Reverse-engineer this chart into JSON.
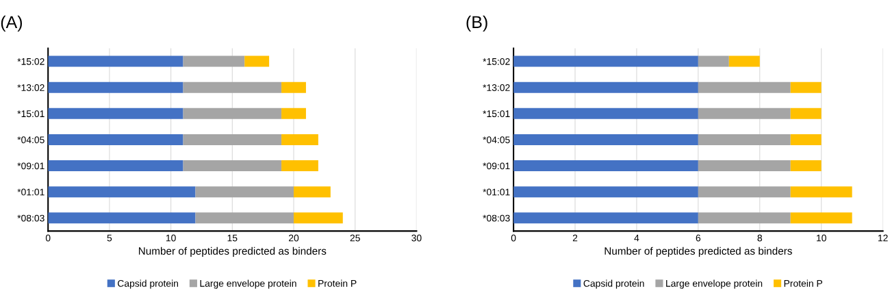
{
  "chart_data": [
    {
      "type": "bar",
      "title": "(A)",
      "orientation": "horizontal",
      "stacked": true,
      "xlabel": "Number of peptides predicted as binders",
      "categories": [
        "*15:02",
        "*13:02",
        "*15:01",
        "*04:05",
        "*09:01",
        "*01:01",
        "*08:03"
      ],
      "series": [
        {
          "name": "Capsid protein",
          "color": "#4472c4",
          "values": [
            11,
            11,
            11,
            11,
            11,
            12,
            12
          ]
        },
        {
          "name": "Large envelope protein",
          "color": "#a5a5a5",
          "values": [
            5,
            8,
            8,
            8,
            8,
            8,
            8
          ]
        },
        {
          "name": "Protein P",
          "color": "#ffc000",
          "values": [
            2,
            2,
            2,
            3,
            3,
            3,
            4
          ]
        }
      ],
      "xlim": [
        0,
        30
      ],
      "xticks": [
        0,
        5,
        10,
        15,
        20,
        25,
        30
      ],
      "grid": "x",
      "legend": "bottom"
    },
    {
      "type": "bar",
      "title": "(B)",
      "orientation": "horizontal",
      "stacked": true,
      "xlabel": "Number of peptides predicted as binders",
      "categories": [
        "*15:02",
        "*13:02",
        "*15:01",
        "*04:05",
        "*09:01",
        "*01:01",
        "*08:03"
      ],
      "series": [
        {
          "name": "Capsid protein",
          "color": "#4472c4",
          "values": [
            6,
            6,
            6,
            6,
            6,
            6,
            6
          ]
        },
        {
          "name": "Large envelope protein",
          "color": "#a5a5a5",
          "values": [
            1,
            3,
            3,
            3,
            3,
            3,
            3
          ]
        },
        {
          "name": "Protein P",
          "color": "#ffc000",
          "values": [
            1,
            1,
            1,
            1,
            1,
            2,
            2
          ]
        }
      ],
      "xlim": [
        0,
        12
      ],
      "xticks": [
        0,
        2,
        4,
        6,
        8,
        10,
        12
      ],
      "grid": "x",
      "legend": "bottom"
    }
  ]
}
